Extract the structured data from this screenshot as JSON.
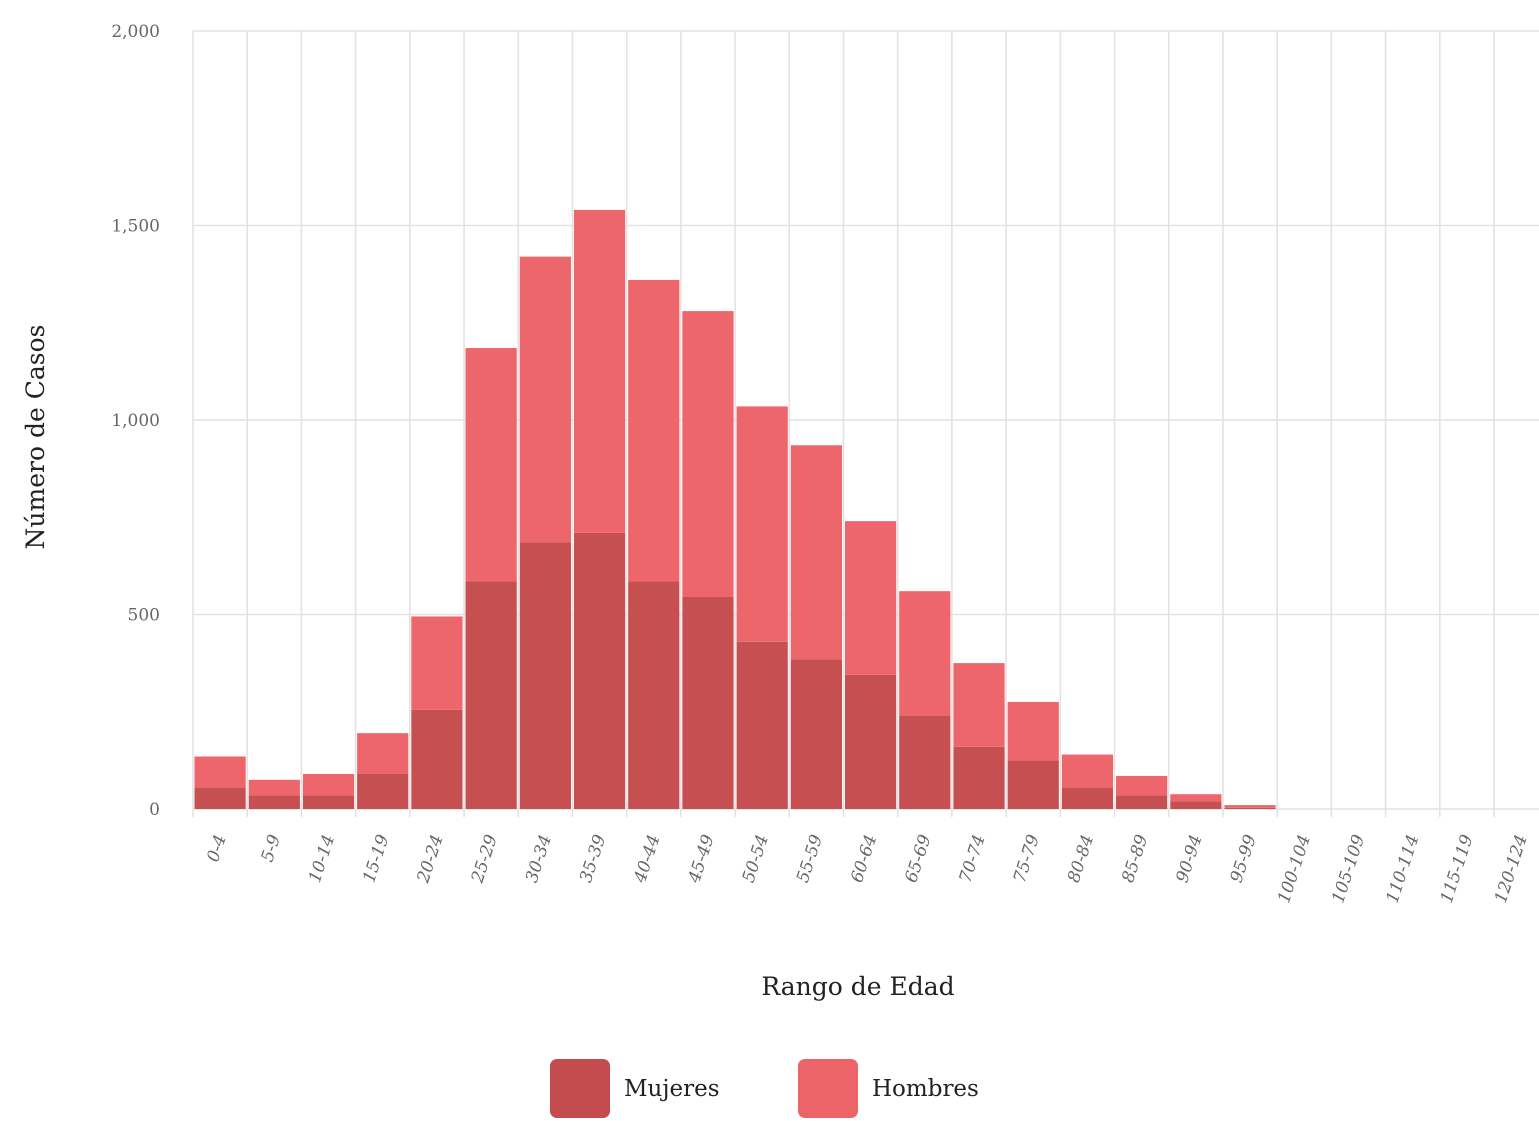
{
  "chart_data": {
    "type": "bar",
    "stacked": true,
    "categories": [
      "0-4",
      "5-9",
      "10-14",
      "15-19",
      "20-24",
      "25-29",
      "30-34",
      "35-39",
      "40-44",
      "45-49",
      "50-54",
      "55-59",
      "60-64",
      "65-69",
      "70-74",
      "75-79",
      "80-84",
      "85-89",
      "90-94",
      "95-99",
      "100-104",
      "105-109",
      "110-114",
      "115-119",
      "120-124"
    ],
    "series": [
      {
        "name": "Mujeres",
        "color": "#c44b4e",
        "values": [
          55,
          35,
          35,
          90,
          255,
          585,
          685,
          710,
          585,
          545,
          430,
          385,
          345,
          240,
          160,
          125,
          55,
          35,
          20,
          3,
          0,
          0,
          0,
          0,
          0
        ]
      },
      {
        "name": "Hombres",
        "color": "#ec6368",
        "values": [
          80,
          40,
          55,
          105,
          240,
          600,
          735,
          830,
          775,
          735,
          605,
          550,
          395,
          320,
          215,
          150,
          85,
          50,
          18,
          7,
          0,
          0,
          0,
          0,
          0
        ]
      }
    ],
    "xlabel": "Rango de Edad",
    "ylabel": "Número de Casos",
    "ylim": [
      0,
      2000
    ],
    "yticks": [
      0,
      500,
      1000,
      1500,
      2000
    ],
    "ytick_labels": [
      "0",
      "500",
      "1,000",
      "1,500",
      "2,000"
    ],
    "grid": true,
    "legend_position": "bottom"
  }
}
